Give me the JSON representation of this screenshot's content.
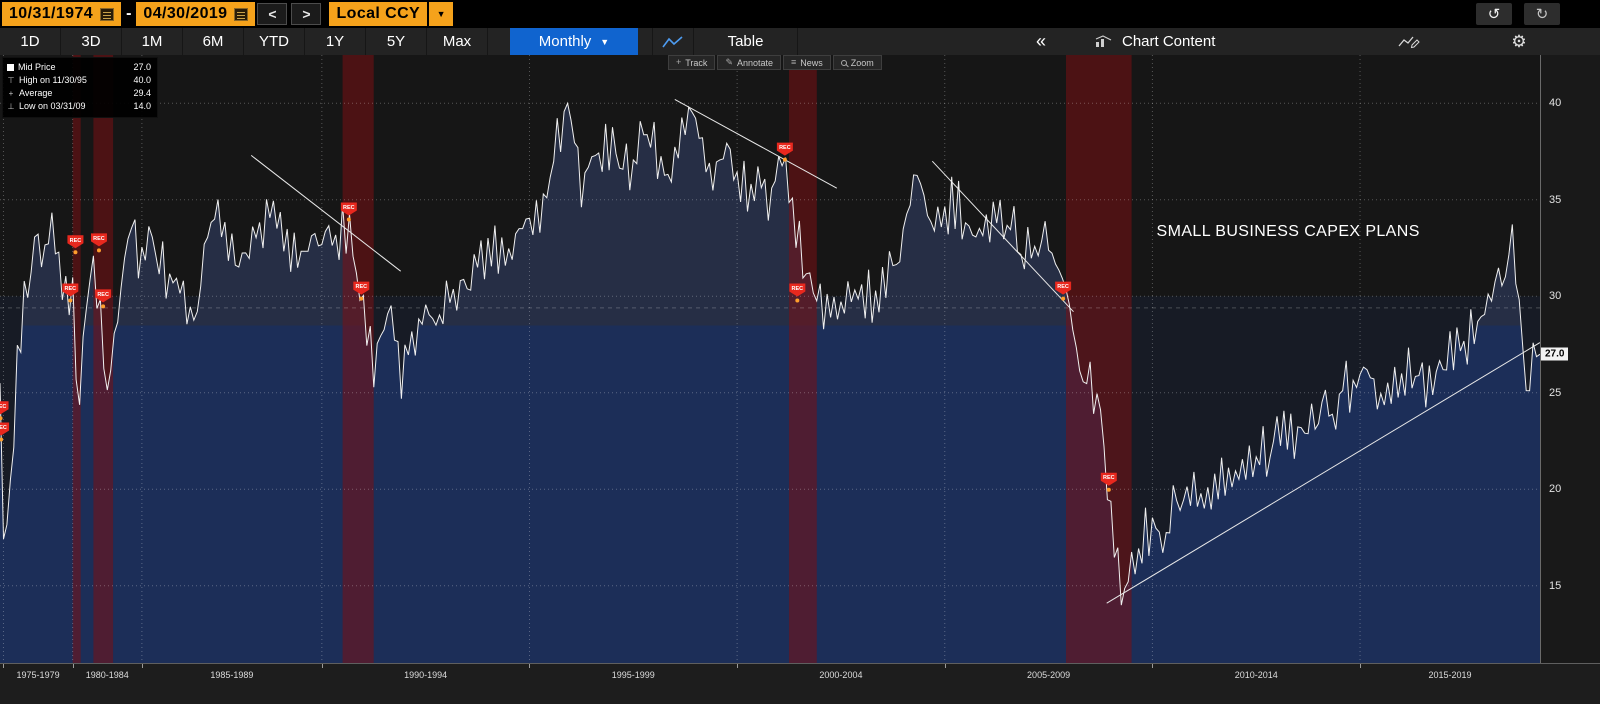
{
  "header": {
    "start_date": "10/31/1974",
    "range_separator": "-",
    "end_date": "04/30/2019",
    "prev_label": "<",
    "next_label": ">",
    "currency": "Local CCY",
    "dropdown_icon": "▼",
    "undo_icon": "↺",
    "redo_icon": "↻"
  },
  "toolbar": {
    "periods": [
      "1D",
      "3D",
      "1M",
      "6M",
      "YTD",
      "1Y",
      "5Y",
      "Max"
    ],
    "frequency": "Monthly",
    "dropdown_icon": "▼",
    "table_label": "Table",
    "collapse_icon": "«",
    "chart_content_label": "Chart Content",
    "gear_icon": "⚙"
  },
  "mini_toolbar": {
    "track": "Track",
    "annotate": "Annotate",
    "news": "News",
    "zoom": "Zoom"
  },
  "legend": {
    "items": [
      {
        "label": "Mid Price",
        "value": "27.0"
      },
      {
        "label": "High on 11/30/95",
        "value": "40.0"
      },
      {
        "label": "Average",
        "value": "29.4"
      },
      {
        "label": "Low on 03/31/09",
        "value": "14.0"
      }
    ]
  },
  "chart_data": {
    "type": "line",
    "title": "SMALL BUSINESS CAPEX PLANS",
    "series_name": "Mid Price",
    "x_start": 1974.75,
    "x_end": 2019.3333,
    "freq_switch_year": 1986,
    "ylim": [
      11,
      42.5
    ],
    "yticks": [
      15,
      20,
      25,
      30,
      35,
      40
    ],
    "grid_years": [
      1975,
      1980,
      1985,
      1990,
      1995,
      2000,
      2005,
      2010,
      2015
    ],
    "band_level": 30,
    "average": 29.4,
    "high": {
      "date": "11/30/95",
      "year": 1995.917,
      "value": 40.0
    },
    "low": {
      "date": "03/31/09",
      "year": 2009.25,
      "value": 14.0
    },
    "last_value": 27.0,
    "last_label": "27.0",
    "noise": 1.05,
    "clamp": [
      14.2,
      39.8
    ],
    "anchors": [
      [
        1974.75,
        25.0
      ],
      [
        1975.0,
        16.5
      ],
      [
        1975.5,
        20.0
      ],
      [
        1976.0,
        26.0
      ],
      [
        1976.75,
        31.0
      ],
      [
        1977.5,
        33.5
      ],
      [
        1978.0,
        31.5
      ],
      [
        1978.5,
        33.0
      ],
      [
        1979.0,
        31.0
      ],
      [
        1979.75,
        30.5
      ],
      [
        1980.1,
        30.8
      ],
      [
        1980.4,
        21.5
      ],
      [
        1980.75,
        28.0
      ],
      [
        1981.25,
        31.5
      ],
      [
        1981.75,
        30.5
      ],
      [
        1982.5,
        25.5
      ],
      [
        1983.0,
        27.5
      ],
      [
        1983.75,
        31.5
      ],
      [
        1984.25,
        33.0
      ],
      [
        1985.0,
        31.5
      ],
      [
        1985.75,
        32.5
      ],
      [
        1986.5,
        30.5
      ],
      [
        1987.0,
        29.5
      ],
      [
        1987.4,
        34.5
      ],
      [
        1988.0,
        31.5
      ],
      [
        1988.8,
        34.0
      ],
      [
        1989.3,
        32.5
      ],
      [
        1990.0,
        33.0
      ],
      [
        1990.6,
        33.5
      ],
      [
        1991.0,
        29.5
      ],
      [
        1991.25,
        26.0
      ],
      [
        1991.6,
        29.5
      ],
      [
        1991.9,
        25.8
      ],
      [
        1992.3,
        28.5
      ],
      [
        1993.0,
        29.5
      ],
      [
        1993.8,
        31.5
      ],
      [
        1994.5,
        33.0
      ],
      [
        1995.3,
        34.5
      ],
      [
        1995.917,
        40.0
      ],
      [
        1996.3,
        35.5
      ],
      [
        1996.8,
        38.0
      ],
      [
        1997.3,
        36.5
      ],
      [
        1997.8,
        38.5
      ],
      [
        1998.3,
        36.5
      ],
      [
        1998.8,
        40.0
      ],
      [
        1999.3,
        36.0
      ],
      [
        1999.8,
        37.5
      ],
      [
        2000.3,
        35.5
      ],
      [
        2000.8,
        35.0
      ],
      [
        2001.17,
        37.5
      ],
      [
        2001.6,
        31.0
      ],
      [
        2002.0,
        30.0
      ],
      [
        2002.3,
        28.8
      ],
      [
        2002.8,
        31.0
      ],
      [
        2003.3,
        29.5
      ],
      [
        2003.9,
        32.0
      ],
      [
        2004.3,
        36.5
      ],
      [
        2004.8,
        33.0
      ],
      [
        2005.2,
        35.0
      ],
      [
        2005.8,
        33.0
      ],
      [
        2006.3,
        34.5
      ],
      [
        2006.9,
        32.5
      ],
      [
        2007.4,
        33.5
      ],
      [
        2007.9,
        30.5
      ],
      [
        2008.3,
        26.0
      ],
      [
        2008.7,
        24.5
      ],
      [
        2009.0,
        19.5
      ],
      [
        2009.25,
        14.0
      ],
      [
        2009.7,
        17.5
      ],
      [
        2010.2,
        18.0
      ],
      [
        2010.8,
        19.5
      ],
      [
        2011.3,
        20.0
      ],
      [
        2011.9,
        21.0
      ],
      [
        2012.5,
        21.5
      ],
      [
        2013.1,
        22.5
      ],
      [
        2013.8,
        23.5
      ],
      [
        2014.4,
        24.5
      ],
      [
        2015.0,
        26.0
      ],
      [
        2015.6,
        24.5
      ],
      [
        2016.1,
        26.0
      ],
      [
        2016.6,
        25.0
      ],
      [
        2017.1,
        27.0
      ],
      [
        2017.7,
        28.0
      ],
      [
        2018.2,
        30.0
      ],
      [
        2018.7,
        32.5
      ],
      [
        2019.0,
        25.5
      ],
      [
        2019.3333,
        27.0
      ]
    ],
    "recessions": [
      [
        1980.0,
        1980.58
      ],
      [
        1981.5,
        1982.92
      ],
      [
        1990.5,
        1991.25
      ],
      [
        2001.25,
        2001.92
      ],
      [
        2007.92,
        2009.5
      ]
    ],
    "rec_label": "REC",
    "rec_markers": [
      [
        1974.79,
        24.3
      ],
      [
        1974.83,
        23.2
      ],
      [
        1979.83,
        30.4
      ],
      [
        1980.2,
        32.9
      ],
      [
        1981.9,
        33.0
      ],
      [
        1982.2,
        30.1
      ],
      [
        1990.65,
        34.6
      ],
      [
        1990.95,
        30.5
      ],
      [
        2001.15,
        37.7
      ],
      [
        2001.45,
        30.4
      ],
      [
        2007.85,
        30.5
      ],
      [
        2008.95,
        20.6
      ]
    ],
    "trend_lines": [
      [
        1988.3,
        37.3,
        1991.9,
        31.3
      ],
      [
        1998.5,
        40.2,
        2002.4,
        35.6
      ],
      [
        2004.7,
        37.0,
        2008.1,
        29.2
      ],
      [
        2008.9,
        14.1,
        2019.33,
        27.6
      ]
    ],
    "title_pos": [
      2010.1,
      33.8
    ],
    "xspans": {
      "labels": [
        "1975-1979",
        "1980-1984",
        "1985-1989",
        "1990-1994",
        "1995-1999",
        "2000-2004",
        "2005-2009",
        "2010-2014",
        "2015-2019"
      ],
      "starts": [
        1975,
        1980,
        1985,
        1990,
        1995,
        2000,
        2005,
        2010,
        2015
      ]
    },
    "colors": {
      "line": "#f0f0f0",
      "fill_top": "#262e45",
      "fill_bottom": "#1c2e58",
      "band": "rgba(30,48,100,0.20)",
      "recession": "rgba(122,16,20,0.55)",
      "grid": "rgba(255,255,255,0.28)",
      "avg": "rgba(255,255,255,0.22)",
      "trend": "#e8e8e8",
      "rec_tag": "#e8281e",
      "dot": "#ff9e2c",
      "accent_amber": "#f5a21b",
      "accent_blue": "#1064cf"
    }
  }
}
